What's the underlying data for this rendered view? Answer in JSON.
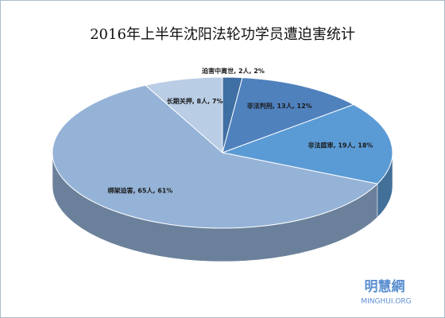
{
  "chart_data": {
    "type": "pie",
    "title": "2016年上半年沈阳法轮功学员遭迫害统计",
    "values": [
      2,
      13,
      19,
      65,
      8
    ],
    "value_labels": [
      "迫害中离世, 2人, 2%",
      "非法判刑, 13人, 12%",
      "非法庭审, 19人, 18%",
      "绑架迫害, 65人, 61%",
      "长期关押, 8人, 7%"
    ],
    "colors": [
      "#3f6fa3",
      "#4f81bd",
      "#5b9bd5",
      "#95b3d7",
      "#b9cde5"
    ],
    "annotations": [
      "明慧網",
      "MINGHUI.ORG"
    ]
  }
}
